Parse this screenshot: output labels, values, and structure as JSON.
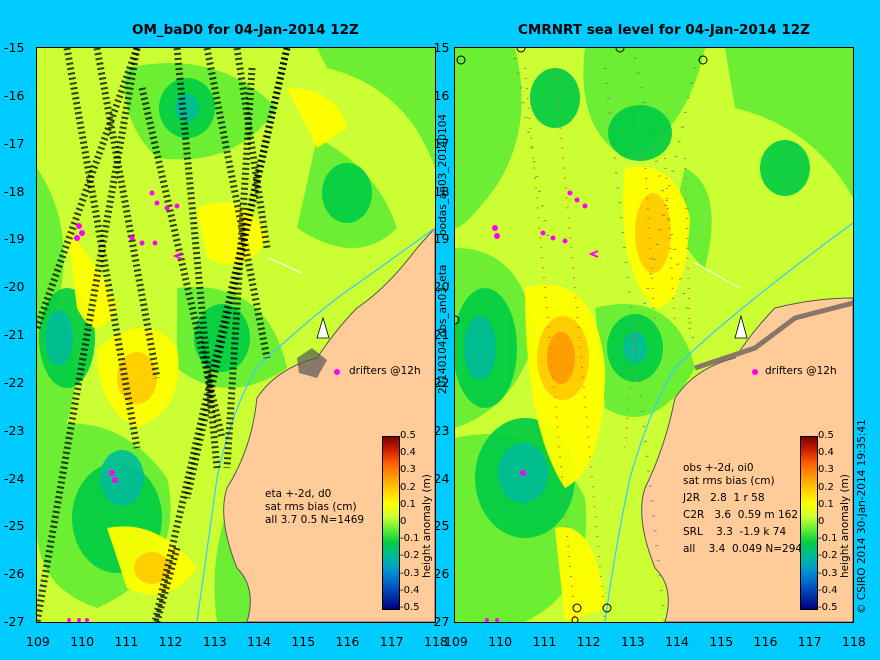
{
  "left_panel": {
    "title": "OM_baD0 for 04-Jan-2014 12Z",
    "stats": [
      "eta +-2d, d0",
      "sat rms bias (cm)",
      "all 3.7 0.5 N=1469"
    ],
    "drifters_label": "drifters @12h"
  },
  "right_panel": {
    "title": "CMRNRT sea level  for 04-Jan-2014 12Z",
    "stats": [
      "obs +-2d, oi0",
      "sat rms bias (cm)",
      "J2R   2.8  1 r 58",
      "C2R   3.6  0.59 m 162",
      "SRL    3.3  -1.9 k 74",
      "all    3.4  0.049 N=294"
    ],
    "drifters_label": "drifters @12h"
  },
  "mid_labels": {
    "top": "bodas_an03_20140104",
    "bottom": "20140104.obs_an03_eta"
  },
  "copyright": "© CSIRO 2014   30-Jan-2014 19:35:41",
  "lat_ticks": [
    "-15",
    "-16",
    "-17",
    "-18",
    "-19",
    "-20",
    "-21",
    "-22",
    "-23",
    "-24",
    "-25",
    "-26",
    "-27"
  ],
  "lon_ticks": [
    "109",
    "110",
    "111",
    "112",
    "113",
    "114",
    "115",
    "116",
    "117",
    "118"
  ],
  "colorbar": {
    "label": "height anomaly (m)",
    "ticks": [
      "0.5",
      "0.4",
      "0.3",
      "0.2",
      "0.1",
      "0",
      "-0.1",
      "-0.2",
      "-0.3",
      "-0.4",
      "-0.5"
    ],
    "colors": [
      "#7f0000",
      "#cc2000",
      "#ff6000",
      "#ff9900",
      "#ffcc00",
      "#ffff00",
      "#ccff33",
      "#66ee33",
      "#00cc44",
      "#00bb99",
      "#0099cc",
      "#0066cc",
      "#0033aa",
      "#000080"
    ]
  },
  "colors": {
    "background": "#00ccff",
    "land": "#ffcc99",
    "ocean_base": "#ccff33",
    "drifter": "#ff00ff"
  }
}
